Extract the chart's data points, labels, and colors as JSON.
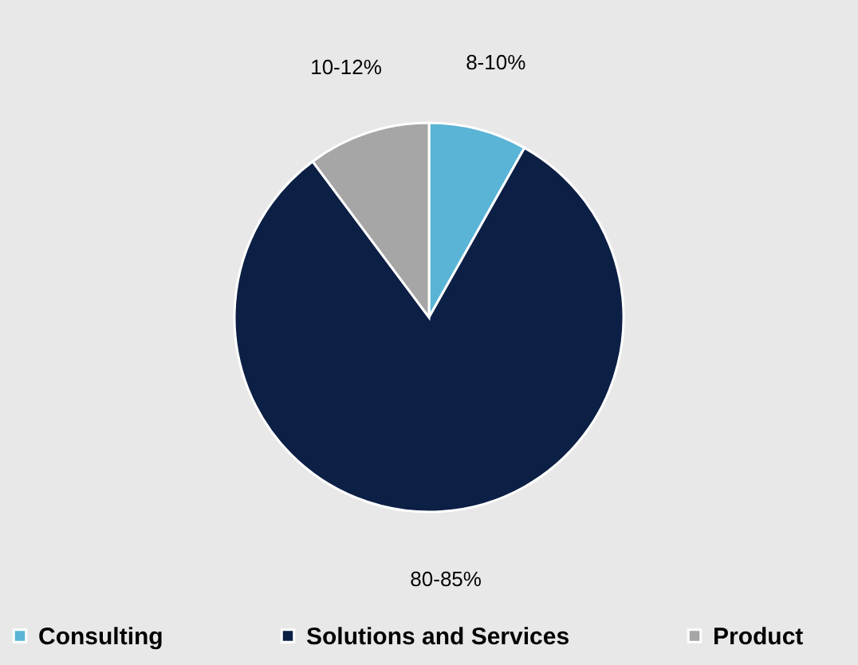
{
  "chart_data": {
    "type": "pie",
    "categories": [
      "Consulting",
      "Solutions and Services",
      "Product"
    ],
    "values": [
      8,
      80,
      10
    ],
    "colors": [
      "#5ab4d6",
      "#0c1f45",
      "#a6a6a6"
    ],
    "value_labels": [
      "8-10%",
      "80-85%",
      "10-12%"
    ],
    "legend": "bottom"
  }
}
